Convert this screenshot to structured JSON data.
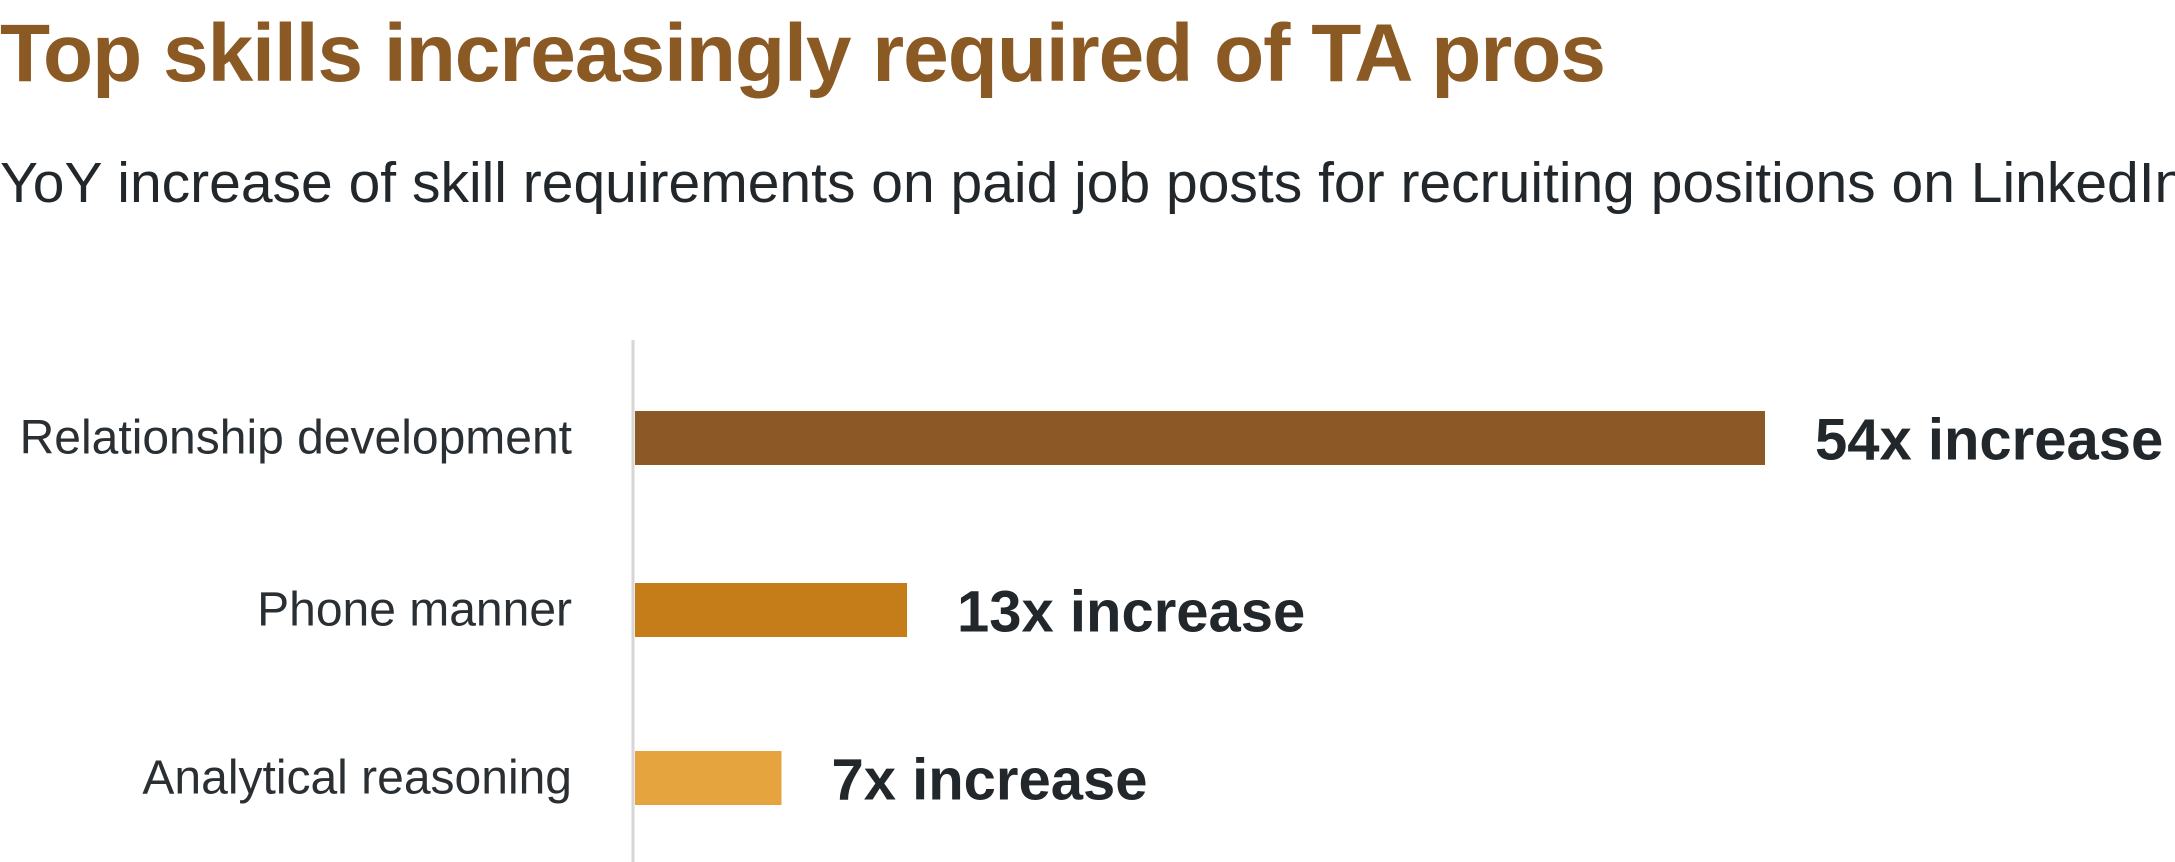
{
  "colors": {
    "title": "#8b5a24",
    "bar_series": [
      "#8c5826",
      "#c47d18",
      "#e6a43e"
    ],
    "axis_line": "#d6d6d6",
    "text": "#22272b"
  },
  "chart_data": {
    "type": "bar",
    "orientation": "horizontal",
    "title": "Top skills increasingly required of TA pros",
    "subtitle": "YoY increase of skill requirements on paid job posts for recruiting positions on LinkedIn.",
    "categories": [
      "Relationship development",
      "Phone manner",
      "Analytical reasoning"
    ],
    "values": [
      54,
      13,
      7
    ],
    "data_labels": [
      "54x increase",
      "13x increase",
      "7x increase"
    ],
    "xlim": [
      0,
      54
    ],
    "grid": false,
    "legend": "none"
  }
}
